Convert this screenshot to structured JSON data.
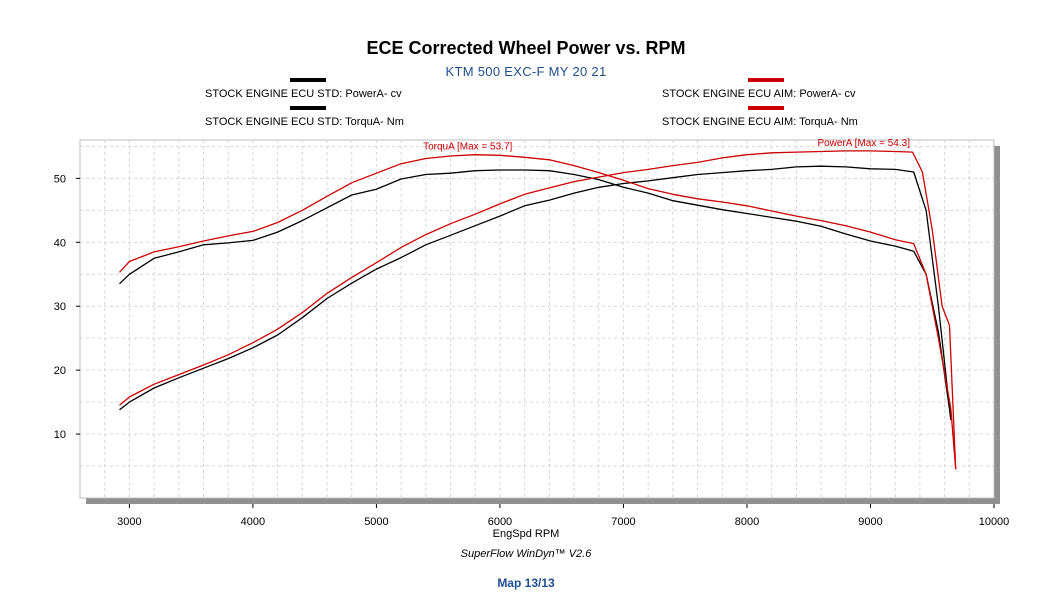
{
  "colors": {
    "std": "#000000",
    "aim": "#cc0000",
    "header_blue": "#1f4f8f",
    "plot_bg": "#ffffff",
    "shadow": "#909090"
  },
  "header": {
    "title": "ECE Corrected Wheel Power vs. RPM",
    "subtitle": "KTM 500 EXC-F MY 20 21"
  },
  "legend": {
    "std_power": "STOCK ENGINE ECU STD: PowerA- cv",
    "std_torque": "STOCK ENGINE ECU STD: TorquA- Nm",
    "aim_power": "STOCK ENGINE ECU AIM: PowerA- cv",
    "aim_torque": "STOCK ENGINE ECU AIM: TorquA- Nm"
  },
  "footer": {
    "xlabel": "EngSpd  RPM",
    "credit": "SuperFlow WinDyn™ V2.6",
    "map": "Map 13/13"
  },
  "chart_data": {
    "type": "line",
    "title": "ECE Corrected Wheel Power vs. RPM",
    "subtitle": "KTM 500 EXC-F MY 20 21",
    "xlabel": "EngSpd  RPM",
    "ylabel": "",
    "xlim": [
      2600,
      10000
    ],
    "ylim": [
      0,
      56
    ],
    "xticks": [
      3000,
      4000,
      5000,
      6000,
      7000,
      8000,
      9000,
      10000
    ],
    "yticks": [
      10,
      20,
      30,
      40,
      50
    ],
    "grid": true,
    "annotations": [
      {
        "text": "TorquA [Max = 53.7]",
        "x": 6100,
        "y": 53.7
      },
      {
        "text": "PowerA [Max = 54.3]",
        "x": 9320,
        "y": 54.3
      }
    ],
    "series": [
      {
        "name": "STOCK ENGINE ECU STD: PowerA- cv",
        "color": "#000000",
        "x": [
          2920,
          3000,
          3200,
          3400,
          3600,
          3800,
          4000,
          4200,
          4400,
          4600,
          4800,
          5000,
          5200,
          5400,
          5600,
          5800,
          6000,
          6200,
          6400,
          6600,
          6800,
          7000,
          7200,
          7400,
          7600,
          7800,
          8000,
          8200,
          8400,
          8600,
          8800,
          9000,
          9200,
          9350,
          9450,
          9550,
          9650
        ],
        "y": [
          13.8,
          15.0,
          17.2,
          18.8,
          20.3,
          21.8,
          23.5,
          25.5,
          28.2,
          31.2,
          33.6,
          35.8,
          37.6,
          39.6,
          41.1,
          42.6,
          44.1,
          45.7,
          46.6,
          47.7,
          48.6,
          49.2,
          49.6,
          50.1,
          50.6,
          50.9,
          51.2,
          51.4,
          51.8,
          51.9,
          51.8,
          51.5,
          51.4,
          51.0,
          45.0,
          30.0,
          12.2
        ]
      },
      {
        "name": "STOCK ENGINE ECU STD: TorquA- Nm",
        "color": "#000000",
        "x": [
          2920,
          3000,
          3200,
          3400,
          3600,
          3800,
          4000,
          4200,
          4400,
          4600,
          4800,
          5000,
          5200,
          5400,
          5600,
          5800,
          6000,
          6200,
          6400,
          6600,
          6800,
          7000,
          7200,
          7400,
          7600,
          7800,
          8000,
          8200,
          8400,
          8600,
          8800,
          9000,
          9200,
          9350,
          9450,
          9550,
          9650
        ],
        "y": [
          33.5,
          35.0,
          37.5,
          38.5,
          39.6,
          39.9,
          40.3,
          41.6,
          43.4,
          45.4,
          47.4,
          48.3,
          49.9,
          50.6,
          50.8,
          51.2,
          51.3,
          51.3,
          51.2,
          50.6,
          49.8,
          48.6,
          47.7,
          46.5,
          45.8,
          45.1,
          44.5,
          43.9,
          43.3,
          42.5,
          41.3,
          40.2,
          39.4,
          38.6,
          35.0,
          26.0,
          12.5
        ]
      },
      {
        "name": "STOCK ENGINE ECU AIM: PowerA- cv",
        "color": "#cc0000",
        "x": [
          2920,
          3000,
          3200,
          3400,
          3600,
          3800,
          4000,
          4200,
          4400,
          4600,
          4800,
          5000,
          5200,
          5400,
          5600,
          5800,
          6000,
          6200,
          6400,
          6600,
          6800,
          7000,
          7200,
          7400,
          7600,
          7800,
          8000,
          8200,
          8400,
          8600,
          8800,
          9000,
          9200,
          9340,
          9420,
          9500,
          9580,
          9640,
          9690
        ],
        "y": [
          14.5,
          15.8,
          17.8,
          19.3,
          20.8,
          22.4,
          24.3,
          26.4,
          29.0,
          32.0,
          34.5,
          36.8,
          39.2,
          41.2,
          42.9,
          44.4,
          46.0,
          47.5,
          48.5,
          49.5,
          50.2,
          50.9,
          51.4,
          52.0,
          52.5,
          53.2,
          53.7,
          54.0,
          54.1,
          54.2,
          54.3,
          54.3,
          54.2,
          54.1,
          51.0,
          42.0,
          30.0,
          27.0,
          4.5
        ]
      },
      {
        "name": "STOCK ENGINE ECU AIM: TorquA- Nm",
        "color": "#cc0000",
        "x": [
          2920,
          3000,
          3200,
          3400,
          3600,
          3800,
          4000,
          4200,
          4400,
          4600,
          4800,
          5000,
          5200,
          5400,
          5600,
          5800,
          6000,
          6200,
          6400,
          6600,
          6800,
          7000,
          7200,
          7400,
          7600,
          7800,
          8000,
          8200,
          8400,
          8600,
          8800,
          9000,
          9200,
          9350,
          9450,
          9550,
          9650,
          9690
        ],
        "y": [
          35.3,
          37.0,
          38.5,
          39.3,
          40.2,
          41.0,
          41.7,
          43.1,
          45.0,
          47.2,
          49.3,
          50.8,
          52.3,
          53.1,
          53.5,
          53.7,
          53.6,
          53.3,
          52.9,
          52.0,
          50.9,
          49.7,
          48.4,
          47.5,
          46.8,
          46.3,
          45.7,
          44.9,
          44.1,
          43.4,
          42.6,
          41.6,
          40.4,
          39.8,
          35.0,
          25.0,
          14.0,
          4.5
        ]
      }
    ]
  }
}
